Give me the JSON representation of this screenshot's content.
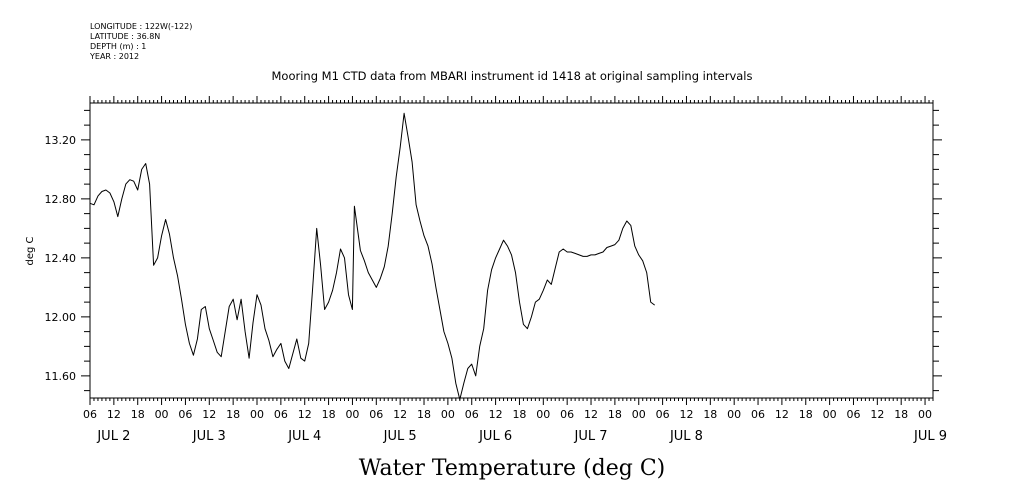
{
  "meta": {
    "longitude": "LONGITUDE : 122W(-122)",
    "latitude": "LATITUDE : 36.8N",
    "depth": "DEPTH (m) : 1",
    "year": "YEAR : 2012"
  },
  "chart_data": {
    "type": "line",
    "title": "Mooring M1 CTD data from MBARI instrument id 1418 at original sampling intervals",
    "xlabel": "Water Temperature (deg C)",
    "ylabel": "deg C",
    "x_unit": "hours since 2012-07-02 00:00",
    "xlim": [
      -18,
      194
    ],
    "ylim": [
      11.45,
      13.45
    ],
    "y_ticks": [
      11.6,
      12.0,
      12.4,
      12.8,
      13.2
    ],
    "y_tick_labels": [
      "11.60",
      "12.00",
      "12.40",
      "12.80",
      "13.20"
    ],
    "x_hour_ticks": [
      {
        "t": -18,
        "label": "06"
      },
      {
        "t": -12,
        "label": "12"
      },
      {
        "t": -6,
        "label": "18"
      },
      {
        "t": 0,
        "label": "00"
      },
      {
        "t": 6,
        "label": "06"
      },
      {
        "t": 12,
        "label": "12"
      },
      {
        "t": 18,
        "label": "18"
      },
      {
        "t": 24,
        "label": "00"
      },
      {
        "t": 30,
        "label": "06"
      },
      {
        "t": 36,
        "label": "12"
      },
      {
        "t": 42,
        "label": "18"
      },
      {
        "t": 48,
        "label": "00"
      },
      {
        "t": 54,
        "label": "06"
      },
      {
        "t": 60,
        "label": "12"
      },
      {
        "t": 66,
        "label": "18"
      },
      {
        "t": 72,
        "label": "00"
      },
      {
        "t": 78,
        "label": "06"
      },
      {
        "t": 84,
        "label": "12"
      },
      {
        "t": 90,
        "label": "18"
      },
      {
        "t": 96,
        "label": "00"
      },
      {
        "t": 102,
        "label": "06"
      },
      {
        "t": 108,
        "label": "12"
      },
      {
        "t": 114,
        "label": "18"
      },
      {
        "t": 120,
        "label": "00"
      },
      {
        "t": 126,
        "label": "06"
      },
      {
        "t": 132,
        "label": "12"
      },
      {
        "t": 138,
        "label": "18"
      },
      {
        "t": 144,
        "label": "00"
      },
      {
        "t": 150,
        "label": "06"
      },
      {
        "t": 156,
        "label": "12"
      },
      {
        "t": 162,
        "label": "18"
      },
      {
        "t": 168,
        "label": "00"
      },
      {
        "t": 174,
        "label": "06"
      },
      {
        "t": 180,
        "label": "12"
      },
      {
        "t": 186,
        "label": "18"
      },
      {
        "t": 192,
        "label": "00"
      }
    ],
    "x_day_labels": [
      {
        "t": -12,
        "label": "JUL  2"
      },
      {
        "t": 12,
        "label": "JUL  3"
      },
      {
        "t": 36,
        "label": "JUL  4"
      },
      {
        "t": 60,
        "label": "JUL  5"
      },
      {
        "t": 84,
        "label": "JUL  6"
      },
      {
        "t": 108,
        "label": "JUL  7"
      },
      {
        "t": 132,
        "label": "JUL  8"
      },
      {
        "t": 194,
        "label": "JUL  9"
      }
    ],
    "series": [
      {
        "color": "#000000",
        "points": [
          [
            -18,
            12.77
          ],
          [
            -17,
            12.76
          ],
          [
            -16,
            12.82
          ],
          [
            -15,
            12.85
          ],
          [
            -14,
            12.86
          ],
          [
            -13,
            12.84
          ],
          [
            -12,
            12.78
          ],
          [
            -11,
            12.68
          ],
          [
            -10,
            12.8
          ],
          [
            -9,
            12.9
          ],
          [
            -8,
            12.93
          ],
          [
            -7,
            12.92
          ],
          [
            -6,
            12.86
          ],
          [
            -5,
            13.0
          ],
          [
            -4,
            13.04
          ],
          [
            -3,
            12.9
          ],
          [
            -2,
            12.35
          ],
          [
            -1,
            12.4
          ],
          [
            0,
            12.55
          ],
          [
            1,
            12.66
          ],
          [
            2,
            12.56
          ],
          [
            3,
            12.4
          ],
          [
            4,
            12.28
          ],
          [
            5,
            12.12
          ],
          [
            6,
            11.95
          ],
          [
            7,
            11.82
          ],
          [
            8,
            11.74
          ],
          [
            9,
            11.85
          ],
          [
            10,
            12.05
          ],
          [
            11,
            12.07
          ],
          [
            12,
            11.92
          ],
          [
            13,
            11.84
          ],
          [
            14,
            11.76
          ],
          [
            15,
            11.73
          ],
          [
            16,
            11.9
          ],
          [
            17,
            12.07
          ],
          [
            18,
            12.12
          ],
          [
            19,
            11.98
          ],
          [
            20,
            12.12
          ],
          [
            21,
            11.9
          ],
          [
            22,
            11.72
          ],
          [
            23,
            11.96
          ],
          [
            24,
            12.15
          ],
          [
            25,
            12.08
          ],
          [
            26,
            11.92
          ],
          [
            27,
            11.84
          ],
          [
            28,
            11.73
          ],
          [
            29,
            11.78
          ],
          [
            30,
            11.82
          ],
          [
            31,
            11.7
          ],
          [
            32,
            11.65
          ],
          [
            33,
            11.75
          ],
          [
            34,
            11.85
          ],
          [
            35,
            11.72
          ],
          [
            36,
            11.7
          ],
          [
            37,
            11.82
          ],
          [
            38,
            12.2
          ],
          [
            39,
            12.6
          ],
          [
            40,
            12.35
          ],
          [
            41,
            12.05
          ],
          [
            42,
            12.1
          ],
          [
            43,
            12.18
          ],
          [
            44,
            12.3
          ],
          [
            45,
            12.46
          ],
          [
            46,
            12.4
          ],
          [
            47,
            12.15
          ],
          [
            48,
            12.05
          ],
          [
            48.5,
            12.75
          ],
          [
            49,
            12.65
          ],
          [
            50,
            12.45
          ],
          [
            51,
            12.38
          ],
          [
            52,
            12.3
          ],
          [
            53,
            12.25
          ],
          [
            54,
            12.2
          ],
          [
            55,
            12.26
          ],
          [
            56,
            12.34
          ],
          [
            57,
            12.48
          ],
          [
            58,
            12.7
          ],
          [
            59,
            12.95
          ],
          [
            60,
            13.15
          ],
          [
            61,
            13.38
          ],
          [
            62,
            13.22
          ],
          [
            63,
            13.05
          ],
          [
            64,
            12.76
          ],
          [
            65,
            12.65
          ],
          [
            66,
            12.55
          ],
          [
            67,
            12.48
          ],
          [
            68,
            12.36
          ],
          [
            69,
            12.2
          ],
          [
            70,
            12.05
          ],
          [
            71,
            11.9
          ],
          [
            72,
            11.82
          ],
          [
            73,
            11.72
          ],
          [
            74,
            11.55
          ],
          [
            75,
            11.44
          ],
          [
            76,
            11.55
          ],
          [
            77,
            11.65
          ],
          [
            78,
            11.68
          ],
          [
            79,
            11.6
          ],
          [
            80,
            11.8
          ],
          [
            81,
            11.92
          ],
          [
            82,
            12.18
          ],
          [
            83,
            12.32
          ],
          [
            84,
            12.4
          ],
          [
            85,
            12.46
          ],
          [
            86,
            12.52
          ],
          [
            87,
            12.48
          ],
          [
            88,
            12.42
          ],
          [
            89,
            12.3
          ],
          [
            90,
            12.1
          ],
          [
            91,
            11.95
          ],
          [
            92,
            11.92
          ],
          [
            93,
            12.0
          ],
          [
            94,
            12.1
          ],
          [
            95,
            12.12
          ],
          [
            96,
            12.18
          ],
          [
            97,
            12.25
          ],
          [
            98,
            12.22
          ],
          [
            99,
            12.33
          ],
          [
            100,
            12.44
          ],
          [
            101,
            12.46
          ],
          [
            102,
            12.44
          ],
          [
            103,
            12.44
          ],
          [
            104,
            12.43
          ],
          [
            105,
            12.42
          ],
          [
            106,
            12.41
          ],
          [
            107,
            12.41
          ],
          [
            108,
            12.42
          ],
          [
            109,
            12.42
          ],
          [
            110,
            12.43
          ],
          [
            111,
            12.44
          ],
          [
            112,
            12.47
          ],
          [
            113,
            12.48
          ],
          [
            114,
            12.49
          ],
          [
            115,
            12.52
          ],
          [
            116,
            12.6
          ],
          [
            117,
            12.65
          ],
          [
            118,
            12.62
          ],
          [
            119,
            12.48
          ],
          [
            120,
            12.42
          ],
          [
            121,
            12.38
          ],
          [
            122,
            12.3
          ],
          [
            123,
            12.1
          ],
          [
            124,
            12.08
          ]
        ]
      }
    ]
  }
}
